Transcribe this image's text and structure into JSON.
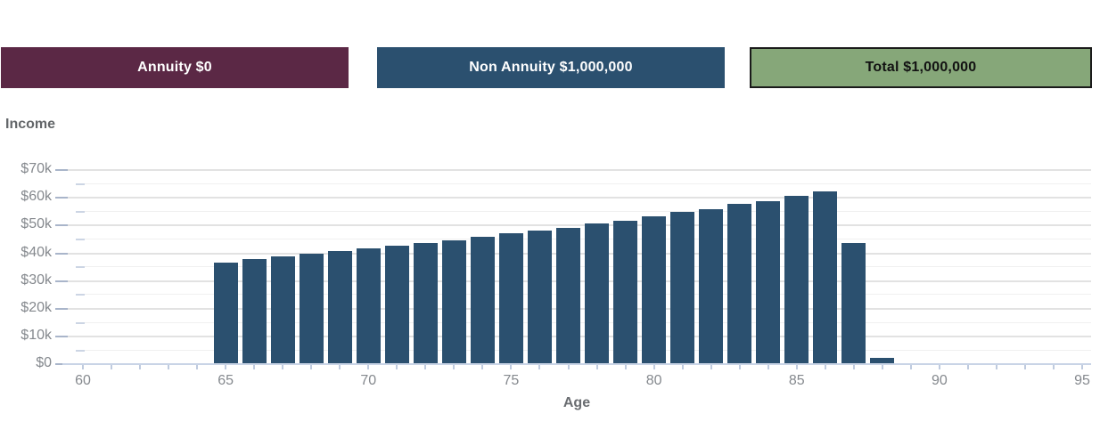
{
  "legend": {
    "annuity": {
      "label": "Annuity $0",
      "bg": "#5b2845",
      "text_color": "#ffffff"
    },
    "non_annuity": {
      "label": "Non Annuity $1,000,000",
      "bg": "#2b506f",
      "text_color": "#ffffff"
    },
    "total": {
      "label": "Total $1,000,000",
      "bg": "#86a779",
      "text_color": "#121212",
      "border_color": "#1a1a1a"
    }
  },
  "chart_data": {
    "type": "bar",
    "title": "Income",
    "xlabel": "Age",
    "ylabel": "Income",
    "bar_color": "#2b506f",
    "x": [
      65,
      66,
      67,
      68,
      69,
      70,
      71,
      72,
      73,
      74,
      75,
      76,
      77,
      78,
      79,
      80,
      81,
      82,
      83,
      84,
      85,
      86,
      87,
      88
    ],
    "values": [
      36500,
      37500,
      38500,
      39500,
      40500,
      41500,
      42500,
      43500,
      44500,
      45500,
      47000,
      48000,
      49000,
      50500,
      51500,
      53000,
      54500,
      55500,
      57500,
      58500,
      60500,
      62000,
      43500,
      2000
    ],
    "xlim": [
      59.3,
      95.3
    ],
    "ylim": [
      0,
      70000
    ],
    "y_major_step": 10000,
    "y_minor_step": 5000,
    "x_tick_step": 1,
    "x_label_ages": [
      60,
      65,
      70,
      75,
      80,
      85,
      90,
      95
    ],
    "x_tick_labels": [
      "60",
      "65",
      "70",
      "75",
      "80",
      "85",
      "90",
      "95"
    ],
    "y_tick_labels": [
      "$0",
      "$10k",
      "$20k",
      "$30k",
      "$40k",
      "$50k",
      "$60k",
      "$70k"
    ],
    "grid": "horizontal-major-and-minor",
    "legend_position": "none"
  }
}
